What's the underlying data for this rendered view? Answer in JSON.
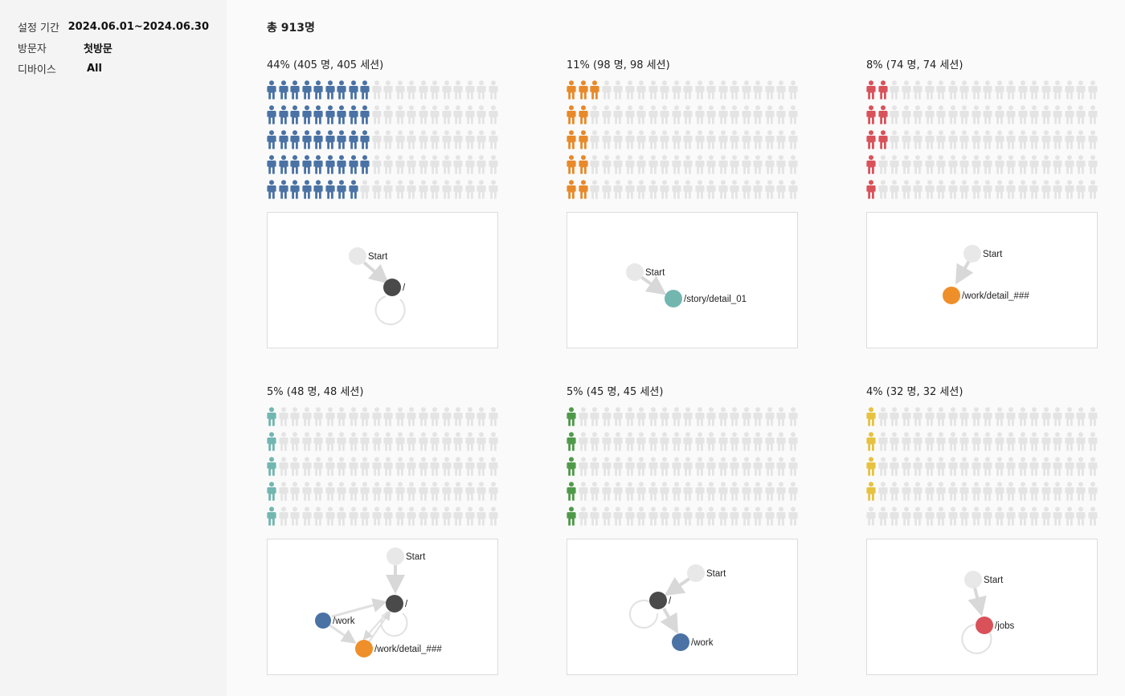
{
  "filters": [
    {
      "label": "설정 기간",
      "value": "2024.06.01~2024.06.30"
    },
    {
      "label": "방문자",
      "value": "첫방문"
    },
    {
      "label": "디바이스",
      "value": "All"
    }
  ],
  "total_label": "총 913명",
  "colors": {
    "inactive_person": "#e4e4e4",
    "start_node": "#e8e8e8",
    "root_node": "#4a4a4a",
    "edge": "#d8d8d8"
  },
  "cohorts": [
    {
      "title": "44% (405 명, 405 세션)",
      "percent": 44,
      "color": "#4a72a5",
      "nodes": [
        {
          "id": "start",
          "label": "Start",
          "color": "#e8e8e8"
        },
        {
          "id": "root",
          "label": "/",
          "color": "#4a4a4a"
        }
      ]
    },
    {
      "title": "11% (98 명, 98 세션)",
      "percent": 11,
      "color": "#e8892a",
      "nodes": [
        {
          "id": "start",
          "label": "Start",
          "color": "#e8e8e8"
        },
        {
          "id": "story",
          "label": "/story/detail_01",
          "color": "#72b6b0"
        }
      ]
    },
    {
      "title": "8% (74 명, 74 세션)",
      "percent": 8,
      "color": "#d9525a",
      "nodes": [
        {
          "id": "start",
          "label": "Start",
          "color": "#e8e8e8"
        },
        {
          "id": "workdetail",
          "label": "/work/detail_###",
          "color": "#ee8f2a"
        }
      ]
    },
    {
      "title": "5% (48 명, 48 세션)",
      "percent": 5,
      "color": "#72b6b0",
      "nodes": [
        {
          "id": "start",
          "label": "Start",
          "color": "#e8e8e8"
        },
        {
          "id": "root",
          "label": "/",
          "color": "#4a4a4a"
        },
        {
          "id": "work",
          "label": "/work",
          "color": "#4a72a5"
        },
        {
          "id": "workdetail",
          "label": "/work/detail_###",
          "color": "#ee8f2a"
        }
      ]
    },
    {
      "title": "5% (45 명, 45 세션)",
      "percent": 5,
      "color": "#4f9a4a",
      "nodes": [
        {
          "id": "start",
          "label": "Start",
          "color": "#e8e8e8"
        },
        {
          "id": "root",
          "label": "/",
          "color": "#4a4a4a"
        },
        {
          "id": "work",
          "label": "/work",
          "color": "#4a72a5"
        }
      ]
    },
    {
      "title": "4% (32 명, 32 세션)",
      "percent": 4,
      "color": "#e6c240",
      "nodes": [
        {
          "id": "start",
          "label": "Start",
          "color": "#e8e8e8"
        },
        {
          "id": "jobs",
          "label": "/jobs",
          "color": "#d9525a"
        }
      ]
    }
  ]
}
